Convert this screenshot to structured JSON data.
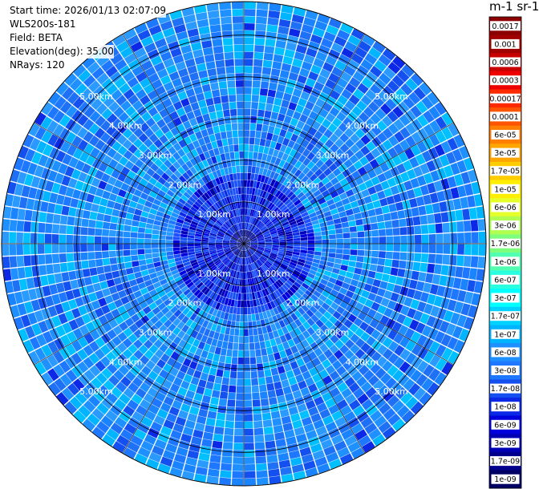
{
  "info": {
    "start_time": "Start time: 2026/01/13 02:07:09",
    "instrument": "WLS200s-181",
    "field": "Field: BETA",
    "elevation": "Elevation(deg): 35.00",
    "nrays": "NRays: 120"
  },
  "colorbar": {
    "unit_label": "m-1 sr-1",
    "labels": [
      "0.0017",
      "0.001",
      "0.0006",
      "0.0003",
      "0.00017",
      "0.0001",
      "6e-05",
      "3e-05",
      "1.7e-05",
      "1e-05",
      "6e-06",
      "3e-06",
      "1.7e-06",
      "1e-06",
      "6e-07",
      "3e-07",
      "1.7e-07",
      "1e-07",
      "6e-08",
      "3e-08",
      "1.7e-08",
      "1e-08",
      "6e-09",
      "3e-09",
      "1.7e-09",
      "1e-09"
    ],
    "colors": [
      "#8b0000",
      "#a00000",
      "#c80000",
      "#ee0000",
      "#ff2a00",
      "#ff5500",
      "#ff7f00",
      "#ffa500",
      "#ffcc00",
      "#ffee00",
      "#e6ff2a",
      "#b0ff50",
      "#7dff7d",
      "#50ffb0",
      "#2affe0",
      "#00ffff",
      "#00d2ff",
      "#00b4ff",
      "#1e90ff",
      "#1e78ff",
      "#1450f0",
      "#0a28e6",
      "#0000dc",
      "#0000b4",
      "#00008c",
      "#000064"
    ]
  },
  "chart_data": {
    "type": "heatmap",
    "projection": "polar-ppi",
    "field": "BETA",
    "elevation_deg": 35.0,
    "nrays": 120,
    "max_range_km": 5.8,
    "range_rings_km": [
      1,
      2,
      3,
      4,
      5
    ],
    "ring_labels": [
      "1.00km",
      "2.00km",
      "3.00km",
      "4.00km",
      "5.00km"
    ],
    "grid": true,
    "colorscale": "jet-like",
    "dominant_value_range": [
      "3e-08",
      "1e-07"
    ],
    "center_value_range": [
      "1e-09",
      "1e-08"
    ],
    "legend_position": "right"
  }
}
